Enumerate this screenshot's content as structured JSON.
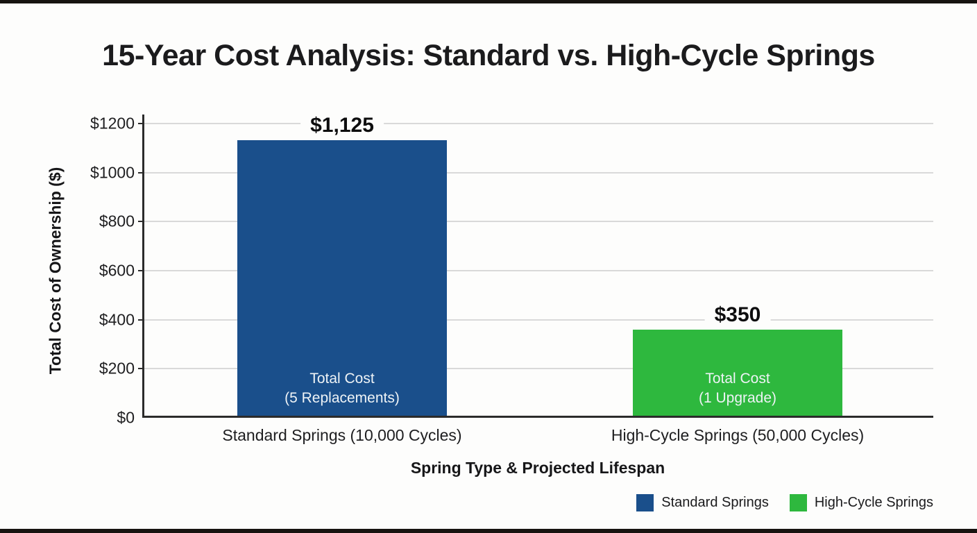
{
  "chart_data": {
    "type": "bar",
    "title": "15-Year Cost Analysis: Standard vs. High-Cycle Springs",
    "xlabel": "Spring Type & Projected Lifespan",
    "ylabel": "Total Cost of Ownership ($)",
    "categories": [
      "Standard Springs (10,000 Cycles)",
      "High-Cycle Springs (50,000 Cycles)"
    ],
    "values": [
      1125,
      350
    ],
    "value_labels": [
      "$1,125",
      "$350"
    ],
    "bar_annotations": [
      [
        "Total Cost",
        "(5 Replacements)"
      ],
      [
        "Total Cost",
        "(1 Upgrade)"
      ]
    ],
    "bar_colors": [
      "#1A4F8B",
      "#2EB83E"
    ],
    "ylim": [
      0,
      1200
    ],
    "yticks": [
      0,
      200,
      400,
      600,
      800,
      1000,
      1200
    ],
    "ytick_labels": [
      "$0",
      "$200",
      "$400",
      "$600",
      "$800",
      "$1000",
      "$1200"
    ],
    "grid": true,
    "legend": {
      "position": "bottom-right",
      "entries": [
        {
          "label": "Standard Springs",
          "color": "#1A4F8B"
        },
        {
          "label": "High-Cycle Springs",
          "color": "#2EB83E"
        }
      ]
    }
  }
}
